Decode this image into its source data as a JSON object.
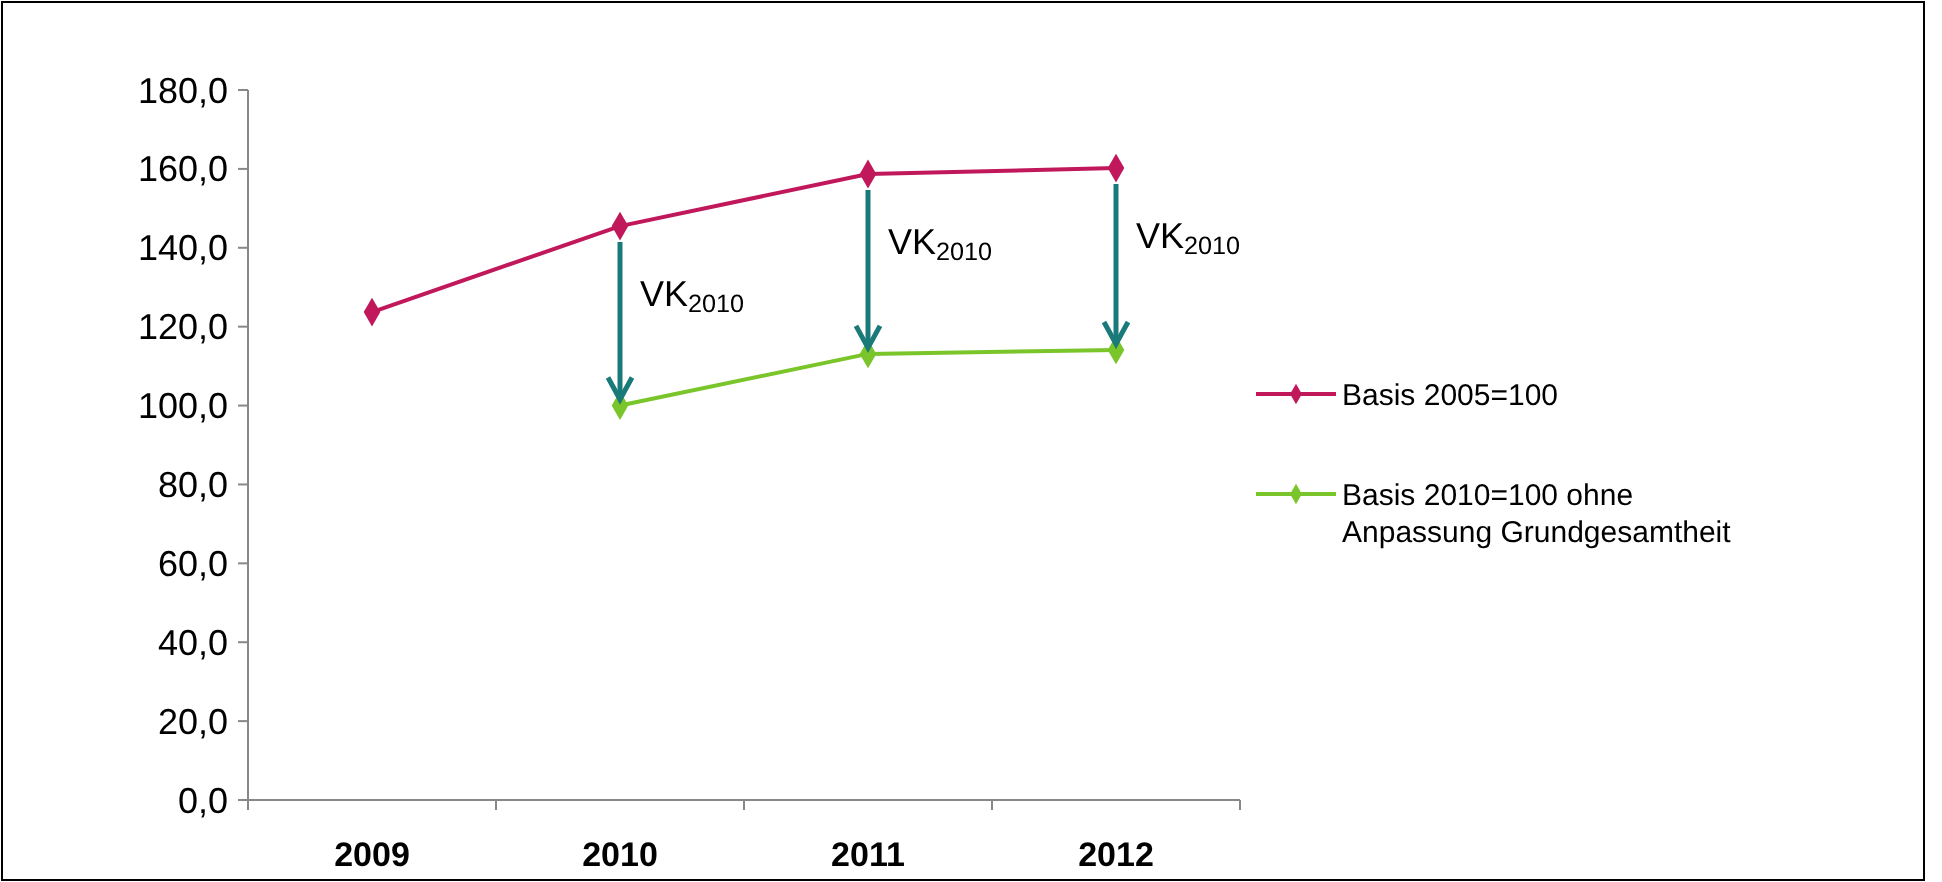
{
  "chart_data": {
    "type": "line",
    "categories": [
      "2009",
      "2010",
      "2011",
      "2012"
    ],
    "series": [
      {
        "name": "Basis 2005=100",
        "color": "#c0185a",
        "values": [
          123.7,
          145.5,
          158.7,
          160.2
        ]
      },
      {
        "name": "Basis 2010=100 ohne Anpassung Grundgesamtheit",
        "color": "#7ac52a",
        "values": [
          null,
          100,
          113.1,
          114.1
        ]
      }
    ],
    "ylim": [
      0,
      180
    ],
    "yticks": [
      {
        "value": 0,
        "label": "0,0"
      },
      {
        "value": 20,
        "label": "20,0"
      },
      {
        "value": 40,
        "label": "40,0"
      },
      {
        "value": 60,
        "label": "60,0"
      },
      {
        "value": 80,
        "label": "80,0"
      },
      {
        "value": 100,
        "label": "100,0"
      },
      {
        "value": 120,
        "label": "120,0"
      },
      {
        "value": 140,
        "label": "140,0"
      },
      {
        "value": 160,
        "label": "160,0"
      },
      {
        "value": 180,
        "label": "180,0"
      }
    ],
    "annotations": [
      {
        "text": "VK$_{2010}$",
        "x": "2010",
        "y": 100
      },
      {
        "text": "VK$_{2010}$",
        "x": "2011",
        "y": 113.1
      },
      {
        "text": "VK$_{2010}$",
        "x": "2012",
        "y": 114.1
      }
    ],
    "marker": "diamond",
    "line_style": "solid",
    "grid": false,
    "legend": "right"
  }
}
